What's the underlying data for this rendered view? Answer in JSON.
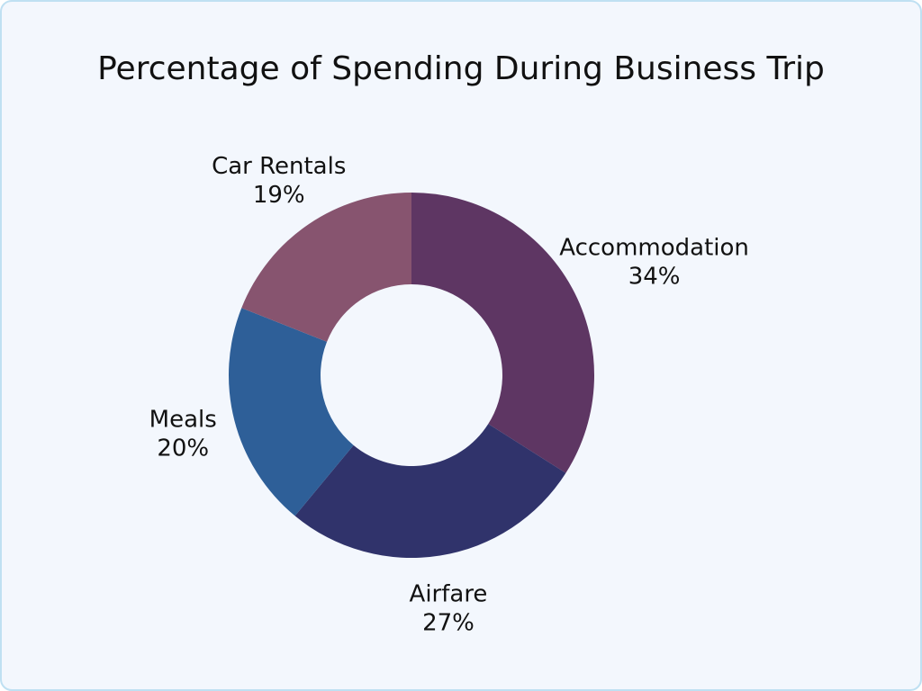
{
  "chart_data": {
    "type": "donut",
    "title": "Percentage of Spending During Business Trip",
    "categories": [
      "Accommodation",
      "Airfare",
      "Meals",
      "Car Rentals"
    ],
    "values": [
      34,
      27,
      20,
      19
    ],
    "value_labels": [
      "34%",
      "27%",
      "20%",
      "19%"
    ],
    "colors": [
      "#5e3663",
      "#30336b",
      "#2e5f98",
      "#87546f"
    ]
  }
}
